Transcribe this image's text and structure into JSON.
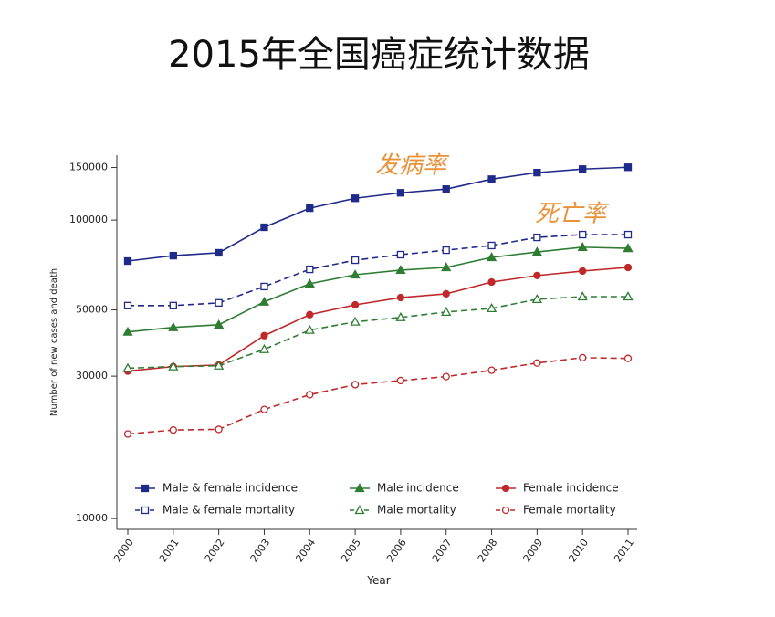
{
  "chart_data": {
    "type": "line",
    "title": "2015年全国癌症统计数据",
    "x_label": "Year",
    "y_label": "Number of new cases and death",
    "annotations": [
      "发病率",
      "死亡率"
    ],
    "categories": [
      "2000",
      "2001",
      "2002",
      "2003",
      "2004",
      "2005",
      "2006",
      "2007",
      "2008",
      "2009",
      "2010",
      "2011"
    ],
    "log_y": true,
    "ylim": [
      9200,
      165000
    ],
    "yticks": [
      10000,
      30000,
      50000,
      100000,
      150000
    ],
    "series": [
      {
        "name": "Male & female incidence",
        "color": "#1f2a8a",
        "marker": "square",
        "filled": true,
        "dashed": false,
        "values": [
          72900,
          76000,
          77700,
          94600,
          109600,
          118300,
          123400,
          127000,
          137100,
          144200,
          148200,
          150300
        ]
      },
      {
        "name": "Male incidence",
        "color": "#2e7d32",
        "marker": "triangle",
        "filled": true,
        "dashed": false,
        "values": [
          42200,
          43700,
          44600,
          53200,
          61200,
          65600,
          68000,
          69400,
          75000,
          78200,
          81100,
          80400
        ]
      },
      {
        "name": "Female incidence",
        "color": "#c0282a",
        "marker": "circle",
        "filled": true,
        "dashed": false,
        "values": [
          31200,
          32300,
          32700,
          41000,
          48200,
          52000,
          55000,
          56600,
          62000,
          65200,
          67500,
          69400
        ]
      },
      {
        "name": "Male & female mortality",
        "color": "#1f2a8a",
        "marker": "square",
        "filled": false,
        "dashed": true,
        "values": [
          51700,
          51700,
          52800,
          59900,
          68400,
          73400,
          76600,
          79300,
          82200,
          87500,
          89400,
          89400
        ]
      },
      {
        "name": "Male mortality",
        "color": "#2e7d32",
        "marker": "triangle",
        "filled": false,
        "dashed": true,
        "values": [
          31900,
          32300,
          32500,
          36900,
          42800,
          45600,
          47200,
          49200,
          50600,
          54300,
          55400,
          55400
        ]
      },
      {
        "name": "Female mortality",
        "color": "#c0282a",
        "marker": "circle",
        "filled": false,
        "dashed": true,
        "values": [
          19200,
          19800,
          19900,
          23200,
          26000,
          28100,
          29000,
          29900,
          31400,
          33200,
          34600,
          34400
        ]
      }
    ]
  }
}
